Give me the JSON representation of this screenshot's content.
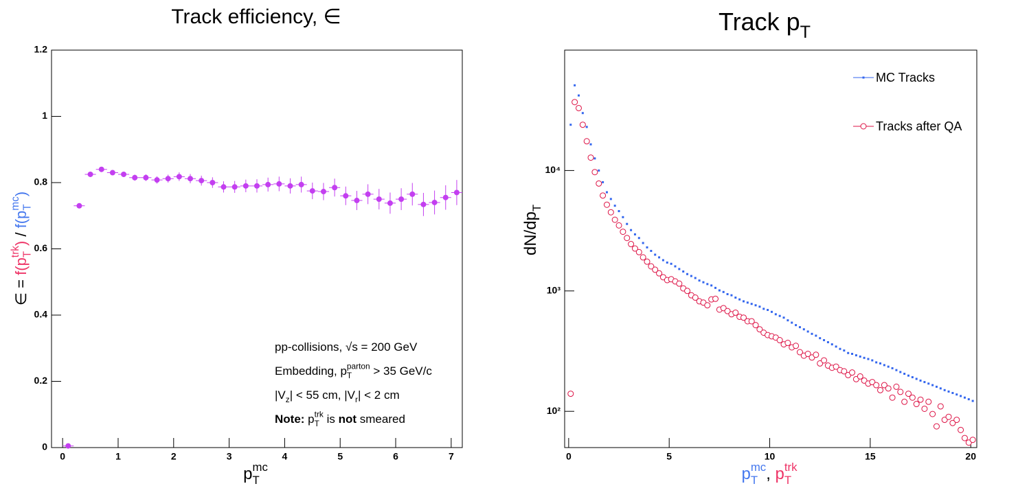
{
  "chart_data": [
    {
      "type": "scatter",
      "title": [
        {
          "text": "Track efficiency, ∈"
        }
      ],
      "x_label": [
        {
          "text": "p"
        },
        {
          "text": "T",
          "shift": "sub"
        },
        {
          "text": "mc",
          "shift": "sup",
          "stack": true
        }
      ],
      "y_label": [
        {
          "text": "∈ = "
        },
        {
          "text": "f(p",
          "color": "#ee3366"
        },
        {
          "text": "T",
          "shift": "sub",
          "color": "#ee3366"
        },
        {
          "text": "trk",
          "shift": "sup",
          "stack": true,
          "color": "#ee3366"
        },
        {
          "text": ")",
          "color": "#ee3366"
        },
        {
          "text": " / "
        },
        {
          "text": "f(p",
          "color": "#4477ee"
        },
        {
          "text": "T",
          "shift": "sub",
          "color": "#4477ee"
        },
        {
          "text": "mc",
          "shift": "sup",
          "stack": true,
          "color": "#4477ee"
        },
        {
          "text": ")",
          "color": "#4477ee"
        }
      ],
      "annotations": [
        [
          {
            "text": "pp-collisions, √s = 200 GeV"
          }
        ],
        [
          {
            "text": "Embedding, p"
          },
          {
            "text": "T",
            "shift": "sub"
          },
          {
            "text": "parton",
            "shift": "sup",
            "stack": true
          },
          {
            "text": " > 35 GeV/c"
          }
        ],
        [
          {
            "text": "|V"
          },
          {
            "text": "z",
            "shift": "sub"
          },
          {
            "text": "| < 55 cm, |V"
          },
          {
            "text": "r",
            "shift": "sub"
          },
          {
            "text": "| < 2 cm"
          }
        ],
        [
          {
            "text": "Note:",
            "bold": true
          },
          {
            "text": " p"
          },
          {
            "text": "T",
            "shift": "sub"
          },
          {
            "text": "trk",
            "shift": "sup",
            "stack": true
          },
          {
            "text": " is "
          },
          {
            "text": "not",
            "bold": true
          },
          {
            "text": " smeared"
          }
        ]
      ],
      "x": [
        0.1,
        0.3,
        0.5,
        0.7,
        0.9,
        1.1,
        1.3,
        1.5,
        1.7,
        1.9,
        2.1,
        2.3,
        2.5,
        2.7,
        2.9,
        3.1,
        3.3,
        3.5,
        3.7,
        3.9,
        4.1,
        4.3,
        4.5,
        4.7,
        4.9,
        5.1,
        5.3,
        5.5,
        5.7,
        5.9,
        6.1,
        6.3,
        6.5,
        6.7,
        6.9,
        7.1
      ],
      "series": [
        {
          "color": "#c33ff0",
          "marker": "circle",
          "values": [
            0.005,
            0.73,
            0.825,
            0.84,
            0.83,
            0.825,
            0.815,
            0.815,
            0.808,
            0.812,
            0.818,
            0.812,
            0.806,
            0.8,
            0.787,
            0.787,
            0.79,
            0.79,
            0.794,
            0.796,
            0.79,
            0.794,
            0.775,
            0.773,
            0.785,
            0.76,
            0.746,
            0.765,
            0.75,
            0.738,
            0.75,
            0.765,
            0.734,
            0.74,
            0.755,
            0.77
          ],
          "errors": [
            0.003,
            0.006,
            0.006,
            0.007,
            0.007,
            0.008,
            0.009,
            0.01,
            0.011,
            0.012,
            0.013,
            0.014,
            0.015,
            0.016,
            0.017,
            0.018,
            0.019,
            0.02,
            0.021,
            0.022,
            0.023,
            0.024,
            0.025,
            0.026,
            0.027,
            0.028,
            0.029,
            0.03,
            0.031,
            0.032,
            0.033,
            0.034,
            0.035,
            0.036,
            0.037,
            0.038
          ]
        }
      ],
      "bin_width": 0.2,
      "xlim": [
        -0.2,
        7.2
      ],
      "ylim": [
        0,
        1.2
      ],
      "xticks": [
        0,
        1,
        2,
        3,
        4,
        5,
        6,
        7
      ],
      "yticks": [
        0,
        0.2,
        0.4,
        0.6,
        0.8,
        1,
        1.2
      ]
    },
    {
      "type": "scatter",
      "title": [
        {
          "text": "Track p"
        },
        {
          "text": "T",
          "shift": "sub"
        }
      ],
      "x_label": [
        {
          "text": "p",
          "color": "#4477ee"
        },
        {
          "text": "T",
          "shift": "sub",
          "color": "#4477ee"
        },
        {
          "text": "mc",
          "shift": "sup",
          "stack": true,
          "color": "#4477ee"
        },
        {
          "text": ", "
        },
        {
          "text": "p",
          "color": "#ee3366"
        },
        {
          "text": "T",
          "shift": "sub",
          "color": "#ee3366"
        },
        {
          "text": "trk",
          "shift": "sup",
          "stack": true,
          "color": "#ee3366"
        }
      ],
      "y_label": [
        {
          "text": "dN/dp"
        },
        {
          "text": "T",
          "shift": "sub"
        }
      ],
      "log_y": true,
      "legend": "top-right",
      "x": [
        0.1,
        0.3,
        0.5,
        0.7,
        0.9,
        1.1,
        1.3,
        1.5,
        1.7,
        1.9,
        2.1,
        2.3,
        2.5,
        2.7,
        2.9,
        3.1,
        3.3,
        3.5,
        3.7,
        3.9,
        4.1,
        4.3,
        4.5,
        4.7,
        4.9,
        5.1,
        5.3,
        5.5,
        5.7,
        5.9,
        6.1,
        6.3,
        6.5,
        6.7,
        6.9,
        7.1,
        7.3,
        7.5,
        7.7,
        7.9,
        8.1,
        8.3,
        8.5,
        8.7,
        8.9,
        9.1,
        9.3,
        9.5,
        9.7,
        9.9,
        10.1,
        10.3,
        10.5,
        10.7,
        10.9,
        11.1,
        11.3,
        11.5,
        11.7,
        11.9,
        12.1,
        12.3,
        12.5,
        12.7,
        12.9,
        13.1,
        13.3,
        13.5,
        13.7,
        13.9,
        14.1,
        14.3,
        14.5,
        14.7,
        14.9,
        15.1,
        15.3,
        15.5,
        15.7,
        15.9,
        16.1,
        16.3,
        16.5,
        16.7,
        16.9,
        17.1,
        17.3,
        17.5,
        17.7,
        17.9,
        18.1,
        18.3,
        18.5,
        18.7,
        18.9,
        19.1,
        19.3,
        19.5,
        19.7,
        19.9,
        20.1
      ],
      "series": [
        {
          "name": "MC Tracks",
          "color": "#3366ee",
          "marker": "square",
          "values": [
            24000,
            51000,
            42000,
            30000,
            23000,
            16500,
            12600,
            10000,
            8000,
            6600,
            5800,
            5100,
            4600,
            4100,
            3600,
            3200,
            2950,
            2750,
            2500,
            2300,
            2150,
            2000,
            1900,
            1800,
            1720,
            1680,
            1600,
            1520,
            1450,
            1380,
            1330,
            1280,
            1220,
            1180,
            1140,
            1110,
            1060,
            1010,
            980,
            940,
            920,
            880,
            850,
            820,
            800,
            780,
            760,
            740,
            710,
            695,
            670,
            640,
            620,
            600,
            570,
            545,
            520,
            500,
            480,
            460,
            440,
            425,
            405,
            390,
            375,
            360,
            345,
            330,
            320,
            305,
            300,
            292,
            285,
            278,
            272,
            265,
            255,
            250,
            242,
            235,
            228,
            220,
            212,
            205,
            198,
            192,
            186,
            180,
            175,
            170,
            165,
            160,
            155,
            150,
            146,
            142,
            138,
            134,
            130,
            126,
            122
          ]
        },
        {
          "name": "Tracks after QA",
          "color": "#dd1144",
          "marker": "open-circle",
          "values": [
            140,
            37000,
            33000,
            24000,
            17500,
            12800,
            9700,
            7800,
            6200,
            5200,
            4500,
            3900,
            3500,
            3100,
            2750,
            2450,
            2250,
            2100,
            1900,
            1750,
            1600,
            1500,
            1400,
            1300,
            1230,
            1250,
            1200,
            1150,
            1050,
            1000,
            920,
            880,
            820,
            800,
            760,
            850,
            860,
            700,
            720,
            680,
            640,
            660,
            610,
            600,
            560,
            560,
            520,
            480,
            450,
            430,
            420,
            410,
            390,
            360,
            370,
            340,
            350,
            310,
            290,
            300,
            280,
            295,
            250,
            265,
            240,
            230,
            235,
            220,
            215,
            200,
            210,
            185,
            195,
            180,
            170,
            175,
            165,
            150,
            165,
            155,
            130,
            160,
            145,
            120,
            140,
            130,
            115,
            125,
            105,
            120,
            95,
            75,
            110,
            85,
            90,
            80,
            85,
            70,
            60,
            55,
            58
          ]
        }
      ],
      "xlim": [
        -0.2,
        20.3
      ],
      "ylim": [
        50,
        100000
      ],
      "xticks": [
        0,
        5,
        10,
        15,
        20
      ],
      "yticks": [
        {
          "value": 100,
          "label": "10²"
        },
        {
          "value": 1000,
          "label": "10³"
        },
        {
          "value": 10000,
          "label": "10⁴"
        }
      ]
    }
  ]
}
